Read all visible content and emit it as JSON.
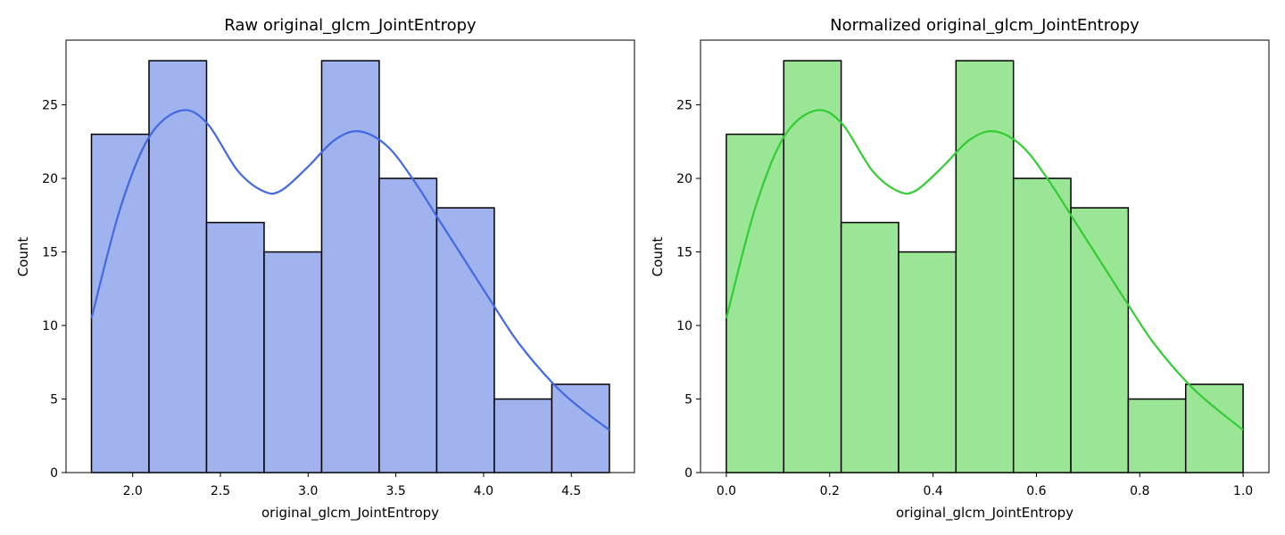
{
  "chart_data": [
    {
      "type": "bar",
      "title": "Raw original_glcm_JointEntropy",
      "xlabel": "original_glcm_JointEntropy",
      "ylabel": "Count",
      "bin_edges": [
        1.765,
        2.093,
        2.421,
        2.749,
        3.077,
        3.405,
        3.733,
        4.061,
        4.389,
        4.717
      ],
      "values": [
        23,
        28,
        17,
        15,
        28,
        20,
        18,
        5,
        6
      ],
      "kde": {
        "x": [
          1.765,
          1.93,
          2.093,
          2.27,
          2.42,
          2.6,
          2.75,
          2.85,
          3.0,
          3.15,
          3.29,
          3.45,
          3.6,
          3.75,
          3.9,
          4.05,
          4.2,
          4.4,
          4.55,
          4.717
        ],
        "y": [
          10.5,
          18.0,
          22.8,
          24.6,
          23.8,
          20.5,
          19.1,
          19.2,
          20.8,
          22.6,
          23.2,
          22.2,
          19.9,
          17.1,
          14.3,
          11.5,
          8.8,
          6.0,
          4.4,
          2.9
        ]
      },
      "xlim": [
        1.62,
        4.86
      ],
      "ylim": [
        0,
        29.4
      ],
      "xticks": [
        "2.0",
        "2.5",
        "3.0",
        "3.5",
        "4.0",
        "4.5"
      ],
      "yticks": [
        "0",
        "5",
        "10",
        "15",
        "20",
        "25"
      ],
      "bar_color": "#a0b3ee",
      "line_color": "#4169e1"
    },
    {
      "type": "bar",
      "title": "Normalized original_glcm_JointEntropy",
      "xlabel": "original_glcm_JointEntropy",
      "ylabel": "Count",
      "bin_edges": [
        0.0,
        0.1111,
        0.2222,
        0.3333,
        0.4444,
        0.5556,
        0.6667,
        0.7778,
        0.8889,
        1.0
      ],
      "values": [
        23,
        28,
        17,
        15,
        28,
        20,
        18,
        5,
        6
      ],
      "kde": {
        "x": [
          0.0,
          0.056,
          0.1111,
          0.171,
          0.222,
          0.283,
          0.334,
          0.368,
          0.419,
          0.47,
          0.518,
          0.572,
          0.623,
          0.674,
          0.725,
          0.776,
          0.827,
          0.895,
          0.946,
          1.0
        ],
        "y": [
          10.5,
          18.0,
          22.8,
          24.6,
          23.8,
          20.5,
          19.1,
          19.2,
          20.8,
          22.6,
          23.2,
          22.2,
          19.9,
          17.1,
          14.3,
          11.5,
          8.8,
          6.0,
          4.4,
          2.9
        ]
      },
      "xlim": [
        -0.05,
        1.05
      ],
      "ylim": [
        0,
        29.4
      ],
      "xticks": [
        "0.0",
        "0.2",
        "0.4",
        "0.6",
        "0.8",
        "1.0"
      ],
      "yticks": [
        "0",
        "5",
        "10",
        "15",
        "20",
        "25"
      ],
      "bar_color": "#9ae596",
      "line_color": "#32cd32"
    }
  ]
}
